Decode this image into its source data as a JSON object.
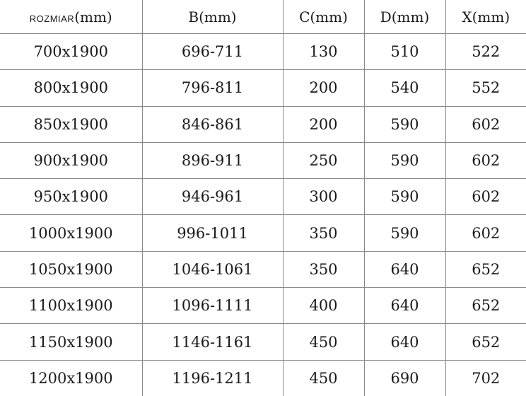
{
  "table": {
    "headers": [
      {
        "name": "ROZMIAR",
        "unit": "(mm)"
      },
      {
        "name": "B",
        "unit": "(mm)"
      },
      {
        "name": "C",
        "unit": "(mm)"
      },
      {
        "name": "D",
        "unit": "(mm)"
      },
      {
        "name": "X",
        "unit": "(mm)"
      }
    ],
    "rows": [
      [
        "700x1900",
        "696-711",
        "130",
        "510",
        "522"
      ],
      [
        "800x1900",
        "796-811",
        "200",
        "540",
        "552"
      ],
      [
        "850x1900",
        "846-861",
        "200",
        "590",
        "602"
      ],
      [
        "900x1900",
        "896-911",
        "250",
        "590",
        "602"
      ],
      [
        "950x1900",
        "946-961",
        "300",
        "590",
        "602"
      ],
      [
        "1000x1900",
        "996-1011",
        "350",
        "590",
        "602"
      ],
      [
        "1050x1900",
        "1046-1061",
        "350",
        "640",
        "652"
      ],
      [
        "1100x1900",
        "1096-1111",
        "400",
        "640",
        "652"
      ],
      [
        "1150x1900",
        "1146-1161",
        "450",
        "640",
        "652"
      ],
      [
        "1200x1900",
        "1196-1211",
        "450",
        "690",
        "702"
      ]
    ]
  }
}
